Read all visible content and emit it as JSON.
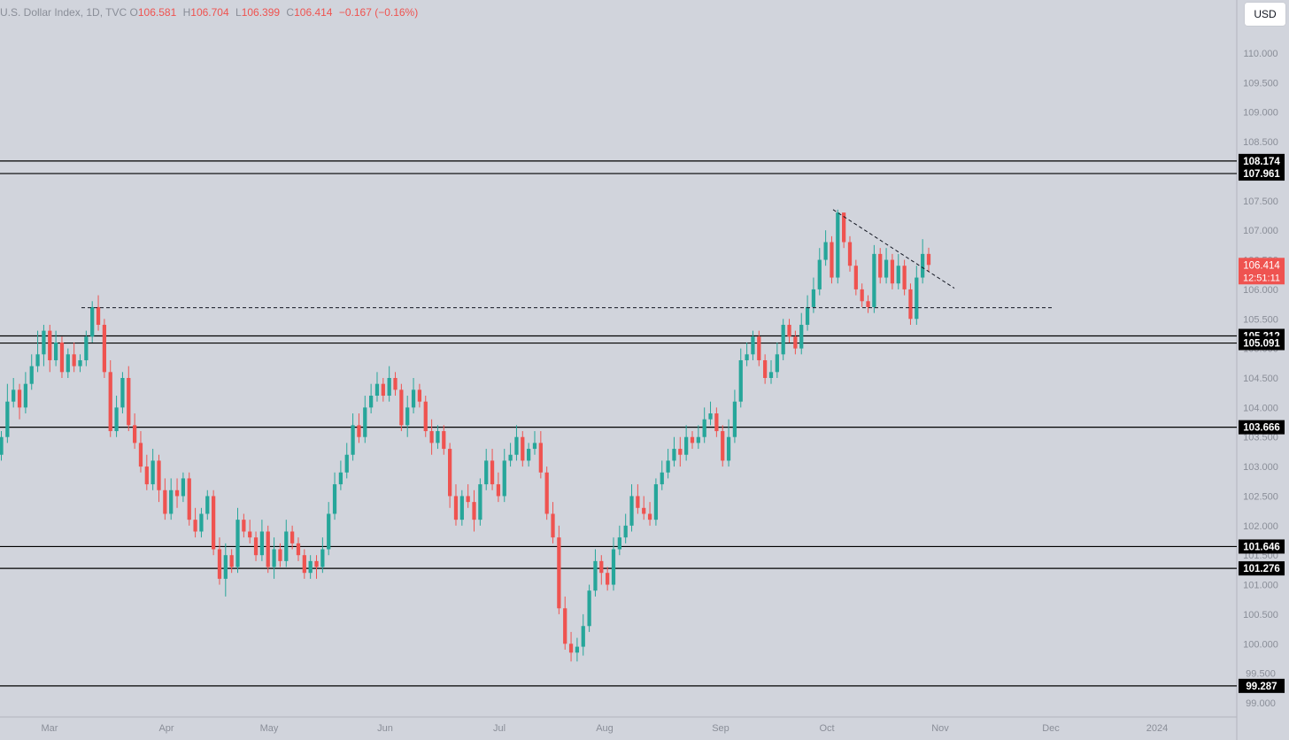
{
  "legend": {
    "symbol": "U.S. Dollar Index, 1D, TVC",
    "open_label": "O",
    "open": "106.581",
    "high_label": "H",
    "high": "106.704",
    "low_label": "L",
    "low": "106.399",
    "close_label": "C",
    "close": "106.414",
    "change": "−0.167 (−0.16%)"
  },
  "currency_button": "USD",
  "colors": {
    "background": "#d1d4dc",
    "up": "#26a69a",
    "down": "#ef5350",
    "axis_text": "#8a8e98",
    "level_line": "#000000",
    "level_label_bg": "#000000",
    "level_label_text": "#ffffff",
    "price_tag_bg": "#ef5350"
  },
  "chart_data": {
    "type": "candlestick",
    "y_range": [
      98.8,
      110.45
    ],
    "y_ticks": [
      "99.000",
      "99.500",
      "100.000",
      "100.500",
      "101.000",
      "101.500",
      "102.000",
      "102.500",
      "103.000",
      "103.500",
      "104.000",
      "104.500",
      "105.000",
      "105.500",
      "106.000",
      "106.500",
      "107.000",
      "107.500",
      "108.000",
      "108.500",
      "109.000",
      "109.500",
      "110.000"
    ],
    "x_labels": [
      "Mar",
      "Apr",
      "May",
      "Jun",
      "Jul",
      "Aug",
      "Sep",
      "Oct",
      "Nov",
      "Dec",
      "2024"
    ],
    "level_labels": [
      "108.174",
      "107.961",
      "105.212",
      "105.091",
      "103.666",
      "101.646",
      "101.276",
      "99.287"
    ],
    "current_price": "106.414",
    "countdown": "12:51:11",
    "horizontal_levels": [
      108.174,
      107.961,
      105.212,
      105.091,
      103.666,
      101.646,
      101.276,
      99.287
    ],
    "dashed_support": 105.69,
    "trendline": {
      "from": [
        107.35
      ],
      "to": [
        106.02
      ]
    },
    "closes": [
      103.5,
      104.1,
      104.3,
      104.0,
      104.4,
      104.7,
      104.9,
      105.3,
      104.8,
      105.1,
      104.6,
      104.9,
      104.7,
      104.8,
      105.2,
      105.7,
      105.4,
      104.6,
      103.6,
      104.0,
      104.5,
      103.7,
      103.4,
      103.0,
      102.7,
      103.1,
      102.6,
      102.2,
      102.6,
      102.5,
      102.8,
      102.1,
      101.9,
      102.2,
      102.5,
      101.6,
      101.1,
      101.5,
      101.3,
      102.1,
      101.9,
      101.8,
      101.5,
      101.9,
      101.3,
      101.6,
      101.4,
      101.9,
      101.7,
      101.5,
      101.2,
      101.4,
      101.3,
      101.6,
      102.2,
      102.7,
      102.9,
      103.2,
      103.7,
      103.5,
      104.0,
      104.2,
      104.4,
      104.2,
      104.5,
      104.3,
      103.7,
      104.0,
      104.3,
      104.1,
      103.6,
      103.4,
      103.6,
      103.3,
      102.5,
      102.1,
      102.5,
      102.4,
      102.1,
      102.7,
      103.1,
      102.7,
      102.5,
      103.1,
      103.2,
      103.5,
      103.1,
      103.3,
      103.4,
      102.9,
      102.2,
      101.8,
      100.6,
      100.0,
      99.85,
      99.95,
      100.3,
      100.9,
      101.4,
      101.2,
      101.0,
      101.6,
      101.8,
      102.0,
      102.5,
      102.3,
      102.2,
      102.1,
      102.7,
      102.9,
      103.1,
      103.3,
      103.2,
      103.5,
      103.4,
      103.5,
      103.8,
      103.9,
      103.6,
      103.1,
      103.5,
      104.1,
      104.8,
      104.9,
      105.2,
      104.8,
      104.5,
      104.6,
      104.9,
      105.4,
      105.2,
      105.0,
      105.4,
      105.7,
      106.0,
      106.5,
      106.8,
      106.2,
      107.3,
      106.8,
      106.4,
      106.0,
      105.8,
      105.7,
      106.6,
      106.2,
      106.5,
      106.1,
      106.4,
      106.0,
      105.5,
      106.2,
      106.6,
      106.414
    ],
    "opens": [
      103.2,
      103.5,
      104.1,
      104.3,
      104.0,
      104.4,
      104.7,
      104.9,
      105.3,
      104.8,
      105.1,
      104.6,
      104.9,
      104.7,
      104.8,
      105.2,
      105.7,
      105.4,
      104.6,
      103.6,
      104.0,
      104.5,
      103.7,
      103.4,
      103.0,
      102.7,
      103.1,
      102.6,
      102.2,
      102.6,
      102.5,
      102.8,
      102.1,
      101.9,
      102.2,
      102.5,
      101.6,
      101.1,
      101.5,
      101.3,
      102.1,
      101.9,
      101.8,
      101.5,
      101.9,
      101.3,
      101.6,
      101.4,
      101.9,
      101.7,
      101.5,
      101.2,
      101.4,
      101.3,
      101.6,
      102.2,
      102.7,
      102.9,
      103.2,
      103.7,
      103.5,
      104.0,
      104.2,
      104.4,
      104.2,
      104.5,
      104.3,
      103.7,
      104.0,
      104.3,
      104.1,
      103.6,
      103.4,
      103.6,
      103.3,
      102.5,
      102.1,
      102.5,
      102.4,
      102.1,
      102.7,
      103.1,
      102.7,
      102.5,
      103.1,
      103.2,
      103.5,
      103.1,
      103.3,
      103.4,
      102.9,
      102.2,
      101.8,
      100.6,
      100.0,
      99.85,
      99.95,
      100.3,
      100.9,
      101.4,
      101.2,
      101.0,
      101.6,
      101.8,
      102.0,
      102.5,
      102.3,
      102.2,
      102.1,
      102.7,
      102.9,
      103.1,
      103.3,
      103.2,
      103.5,
      103.4,
      103.5,
      103.8,
      103.9,
      103.6,
      103.1,
      103.5,
      104.1,
      104.8,
      104.9,
      105.2,
      104.8,
      104.5,
      104.6,
      104.9,
      105.4,
      105.2,
      105.0,
      105.4,
      105.7,
      106.0,
      106.5,
      106.8,
      106.2,
      107.3,
      106.8,
      106.4,
      106.0,
      105.8,
      105.7,
      106.6,
      106.2,
      106.5,
      106.1,
      106.4,
      106.0,
      105.5,
      106.2,
      106.6,
      106.581
    ],
    "highs": [
      103.6,
      104.4,
      104.5,
      104.4,
      104.6,
      104.9,
      105.3,
      105.4,
      105.4,
      105.3,
      105.2,
      105.0,
      105.1,
      104.9,
      105.3,
      105.8,
      105.9,
      105.5,
      104.8,
      104.2,
      104.6,
      104.7,
      103.9,
      103.6,
      103.2,
      103.3,
      103.2,
      102.8,
      102.8,
      102.8,
      102.9,
      102.9,
      102.3,
      102.3,
      102.6,
      102.6,
      101.8,
      101.7,
      101.6,
      102.3,
      102.2,
      102.1,
      101.9,
      102.1,
      102.0,
      101.8,
      101.7,
      102.1,
      102.0,
      101.8,
      101.6,
      101.5,
      101.5,
      101.8,
      102.4,
      102.9,
      103.1,
      103.4,
      103.9,
      103.9,
      104.2,
      104.4,
      104.6,
      104.5,
      104.7,
      104.6,
      104.4,
      104.2,
      104.5,
      104.4,
      104.2,
      103.8,
      103.7,
      103.7,
      103.4,
      102.7,
      102.6,
      102.7,
      102.6,
      102.8,
      103.3,
      103.3,
      102.9,
      103.3,
      103.4,
      103.7,
      103.6,
      103.4,
      103.6,
      103.6,
      103.0,
      102.4,
      102.0,
      100.8,
      100.2,
      100.1,
      100.5,
      101.0,
      101.6,
      101.5,
      101.3,
      101.8,
      102.0,
      102.2,
      102.7,
      102.7,
      102.5,
      102.4,
      102.8,
      103.1,
      103.3,
      103.5,
      103.5,
      103.7,
      103.6,
      103.7,
      104.0,
      104.1,
      104.0,
      103.7,
      103.8,
      104.3,
      105.0,
      105.1,
      105.3,
      105.3,
      104.9,
      104.8,
      105.1,
      105.5,
      105.5,
      105.3,
      105.6,
      105.9,
      106.2,
      106.7,
      107.0,
      106.9,
      107.35,
      107.3,
      106.9,
      106.5,
      106.1,
      105.9,
      106.75,
      106.7,
      106.7,
      106.6,
      106.6,
      106.5,
      106.1,
      106.4,
      106.85,
      106.704
    ],
    "lows": [
      103.1,
      103.4,
      104.0,
      103.8,
      103.9,
      104.3,
      104.6,
      104.7,
      104.6,
      104.7,
      104.5,
      104.5,
      104.6,
      104.6,
      104.7,
      105.1,
      105.3,
      104.5,
      103.5,
      103.5,
      103.9,
      103.6,
      103.3,
      102.9,
      102.6,
      102.6,
      102.4,
      102.1,
      102.1,
      102.3,
      102.4,
      102.0,
      101.8,
      101.8,
      102.1,
      101.5,
      101.0,
      100.8,
      101.2,
      101.2,
      101.8,
      101.7,
      101.4,
      101.4,
      101.2,
      101.1,
      101.3,
      101.3,
      101.6,
      101.4,
      101.1,
      101.1,
      101.1,
      101.2,
      101.5,
      102.1,
      102.6,
      102.8,
      103.1,
      103.4,
      103.4,
      103.9,
      104.1,
      104.1,
      104.1,
      104.2,
      103.6,
      103.5,
      103.9,
      104.0,
      103.5,
      103.2,
      103.3,
      103.2,
      102.3,
      102.0,
      102.0,
      102.3,
      101.9,
      102.0,
      102.6,
      102.6,
      102.4,
      102.4,
      103.0,
      103.1,
      103.0,
      103.0,
      103.2,
      102.8,
      102.1,
      101.7,
      100.5,
      99.9,
      99.7,
      99.7,
      99.8,
      100.2,
      100.8,
      101.0,
      100.9,
      100.9,
      101.5,
      101.7,
      101.9,
      102.2,
      102.1,
      102.0,
      102.0,
      102.6,
      102.8,
      103.0,
      103.0,
      103.1,
      103.3,
      103.3,
      103.4,
      103.7,
      103.5,
      103.0,
      103.0,
      103.4,
      104.0,
      104.7,
      104.8,
      104.7,
      104.4,
      104.4,
      104.5,
      104.8,
      105.1,
      104.9,
      104.9,
      105.3,
      105.6,
      105.9,
      106.4,
      106.1,
      106.1,
      106.7,
      106.3,
      105.9,
      105.7,
      105.6,
      105.6,
      106.1,
      106.1,
      106.0,
      106.0,
      105.9,
      105.4,
      105.4,
      106.1,
      106.3,
      106.399
    ]
  }
}
